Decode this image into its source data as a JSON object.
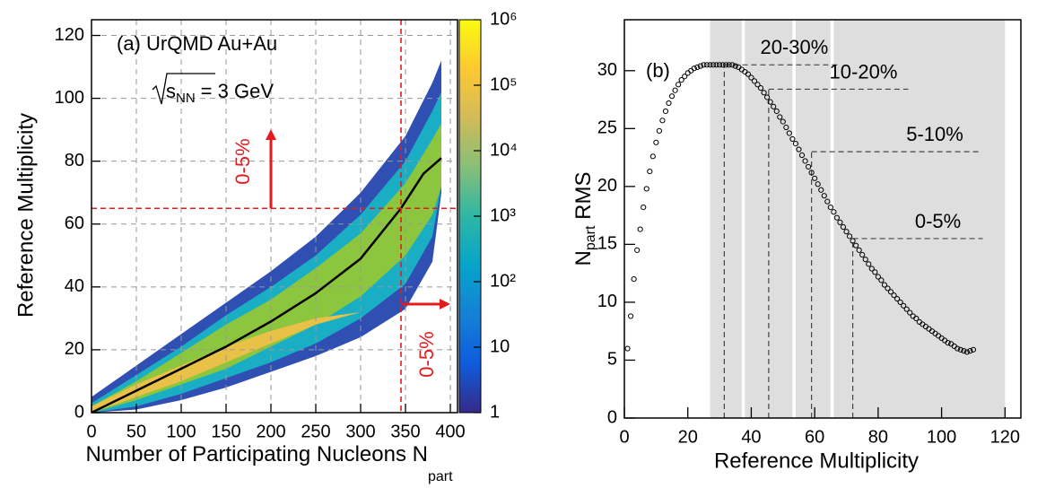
{
  "chart_data": [
    {
      "type": "heatmap",
      "annotation": "(a) UrQMD Au+Au",
      "energy": {
        "symbol": "s",
        "sub": "NN",
        "value": "= 3 GeV"
      },
      "x_label": "Number of Participating Nucleons N",
      "x_label_sub": "part",
      "y_label": "Reference Multiplicity",
      "xlim": [
        0,
        408
      ],
      "ylim": [
        0,
        125
      ],
      "xticks": [
        0,
        50,
        100,
        150,
        200,
        250,
        300,
        350,
        400
      ],
      "yticks": [
        0,
        20,
        40,
        60,
        80,
        100,
        120
      ],
      "grid": true,
      "envelopes": [
        {
          "x": [
            0,
            50,
            100,
            150,
            200,
            250,
            300,
            350,
            380,
            390
          ],
          "upper": [
            5,
            15,
            25,
            35,
            45,
            56,
            70,
            88,
            105,
            112
          ],
          "lower": [
            0,
            1,
            4,
            8,
            13,
            18,
            24,
            33,
            48,
            70
          ],
          "color": "#2f4fb3"
        },
        {
          "x": [
            0,
            50,
            100,
            150,
            200,
            250,
            300,
            350,
            380,
            390
          ],
          "upper": [
            3,
            12,
            21,
            31,
            40,
            50,
            63,
            80,
            96,
            102
          ],
          "lower": [
            0,
            2,
            6,
            11,
            16,
            22,
            30,
            41,
            56,
            72
          ],
          "color": "#1aaec4"
        },
        {
          "x": [
            0,
            50,
            100,
            150,
            200,
            250,
            300,
            350,
            380,
            390
          ],
          "upper": [
            2,
            10,
            19,
            28,
            36,
            46,
            57,
            73,
            87,
            92
          ],
          "lower": [
            0,
            4,
            9,
            14,
            21,
            28,
            37,
            50,
            63,
            72
          ],
          "color": "#8cc63f"
        },
        {
          "x": [
            0,
            50,
            100,
            150,
            200,
            250,
            300
          ],
          "upper": [
            2,
            9,
            15,
            21,
            26,
            30,
            32
          ],
          "lower": [
            0,
            5,
            10,
            16,
            22,
            28,
            32
          ],
          "color": "#e9c147"
        }
      ],
      "curve": {
        "x": [
          0,
          50,
          100,
          150,
          200,
          250,
          300,
          345,
          370,
          390
        ],
        "y": [
          0,
          7,
          14,
          21,
          29,
          38,
          49,
          65,
          76,
          81
        ],
        "color": "#000000"
      },
      "cut_x": 345,
      "cut_y": 65,
      "cut_color": "#e41a1c",
      "cut_label": "0-5%",
      "colorbar": {
        "lim": [
          1,
          1000000
        ],
        "log": true,
        "colors": [
          "#352a87",
          "#0f5cdd",
          "#1481d6",
          "#06a4ca",
          "#2eb7a4",
          "#87bf77",
          "#d1bb59",
          "#fec832",
          "#f9fb0e"
        ],
        "ticks": [
          1,
          10,
          {
            "value": 100,
            "label": "10²"
          },
          {
            "value": 1000,
            "label": "10³"
          },
          {
            "value": 10000,
            "label": "10⁴"
          },
          {
            "value": 100000,
            "label": "10⁵"
          },
          {
            "value": 1000000,
            "label": "10⁶"
          }
        ]
      }
    },
    {
      "type": "scatter",
      "annotation": "(b)",
      "x_label": "Reference Multiplicity",
      "y_label": "N",
      "y_label_sub": "part",
      "y_label_rest": " RMS",
      "xlim": [
        0,
        125
      ],
      "ylim": [
        0,
        34.4
      ],
      "xticks": [
        0,
        20,
        40,
        60,
        80,
        100,
        120
      ],
      "yticks": [
        0,
        5,
        10,
        15,
        20,
        25,
        30
      ],
      "bands": [
        [
          27,
          37
        ],
        [
          38,
          53
        ],
        [
          54,
          65
        ],
        [
          66,
          120
        ]
      ],
      "band_color": "#dedede",
      "cuts": [
        {
          "label": "20-30%",
          "x": 31.5,
          "y": 30.5,
          "x_end": 67.7
        },
        {
          "label": "10-20%",
          "x": 45.5,
          "y": 28.4,
          "x_end": 89.5
        },
        {
          "label": "5-10%",
          "x": 59,
          "y": 23,
          "x_end": 112
        },
        {
          "label": "0-5%",
          "x": 72,
          "y": 15.5,
          "x_end": 113
        }
      ],
      "x": [
        1,
        2,
        3,
        4,
        5,
        6,
        7,
        8,
        9,
        10,
        11,
        12,
        13,
        14,
        15,
        16,
        17,
        18,
        19,
        20,
        21,
        22,
        23,
        24,
        25,
        26,
        27,
        28,
        29,
        30,
        31,
        32,
        33,
        34,
        35,
        36,
        37,
        38,
        39,
        40,
        41,
        42,
        43,
        44,
        45,
        46,
        47,
        48,
        49,
        50,
        51,
        52,
        53,
        54,
        55,
        56,
        57,
        58,
        59,
        60,
        61,
        62,
        63,
        64,
        65,
        66,
        67,
        68,
        69,
        70,
        71,
        72,
        73,
        74,
        75,
        76,
        77,
        78,
        79,
        80,
        81,
        82,
        83,
        84,
        85,
        86,
        87,
        88,
        89,
        90,
        91,
        92,
        93,
        94,
        95,
        96,
        97,
        98,
        99,
        100,
        101,
        102,
        103,
        104,
        105,
        106,
        107,
        108,
        109,
        110
      ],
      "values": [
        6.0,
        8.8,
        12,
        14.5,
        16.3,
        18.2,
        19.8,
        21.3,
        22.6,
        23.8,
        24.8,
        25.7,
        26.5,
        27.2,
        27.8,
        28.3,
        28.8,
        29.2,
        29.5,
        29.8,
        30.0,
        30.2,
        30.3,
        30.4,
        30.5,
        30.5,
        30.5,
        30.5,
        30.5,
        30.5,
        30.5,
        30.5,
        30.5,
        30.5,
        30.4,
        30.3,
        30.1,
        29.9,
        29.7,
        29.4,
        29.1,
        28.8,
        28.5,
        28.1,
        27.7,
        27.3,
        26.9,
        26.5,
        26.0,
        25.6,
        25.1,
        24.6,
        24.1,
        23.7,
        23.2,
        22.7,
        22.2,
        21.7,
        21.2,
        20.7,
        20.2,
        19.7,
        19.2,
        18.7,
        18.2,
        17.8,
        17.3,
        16.9,
        16.5,
        16.1,
        15.7,
        15.3,
        14.9,
        14.5,
        14.1,
        13.7,
        13.3,
        12.9,
        12.6,
        12.2,
        11.9,
        11.5,
        11.2,
        10.9,
        10.6,
        10.3,
        10.0,
        9.7,
        9.4,
        9.1,
        8.8,
        8.6,
        8.3,
        8.1,
        7.9,
        7.7,
        7.5,
        7.3,
        7.1,
        6.9,
        6.7,
        6.5,
        6.4,
        6.2,
        6.0,
        5.9,
        5.8,
        5.7,
        5.8,
        5.9
      ],
      "color": "#000000"
    }
  ]
}
